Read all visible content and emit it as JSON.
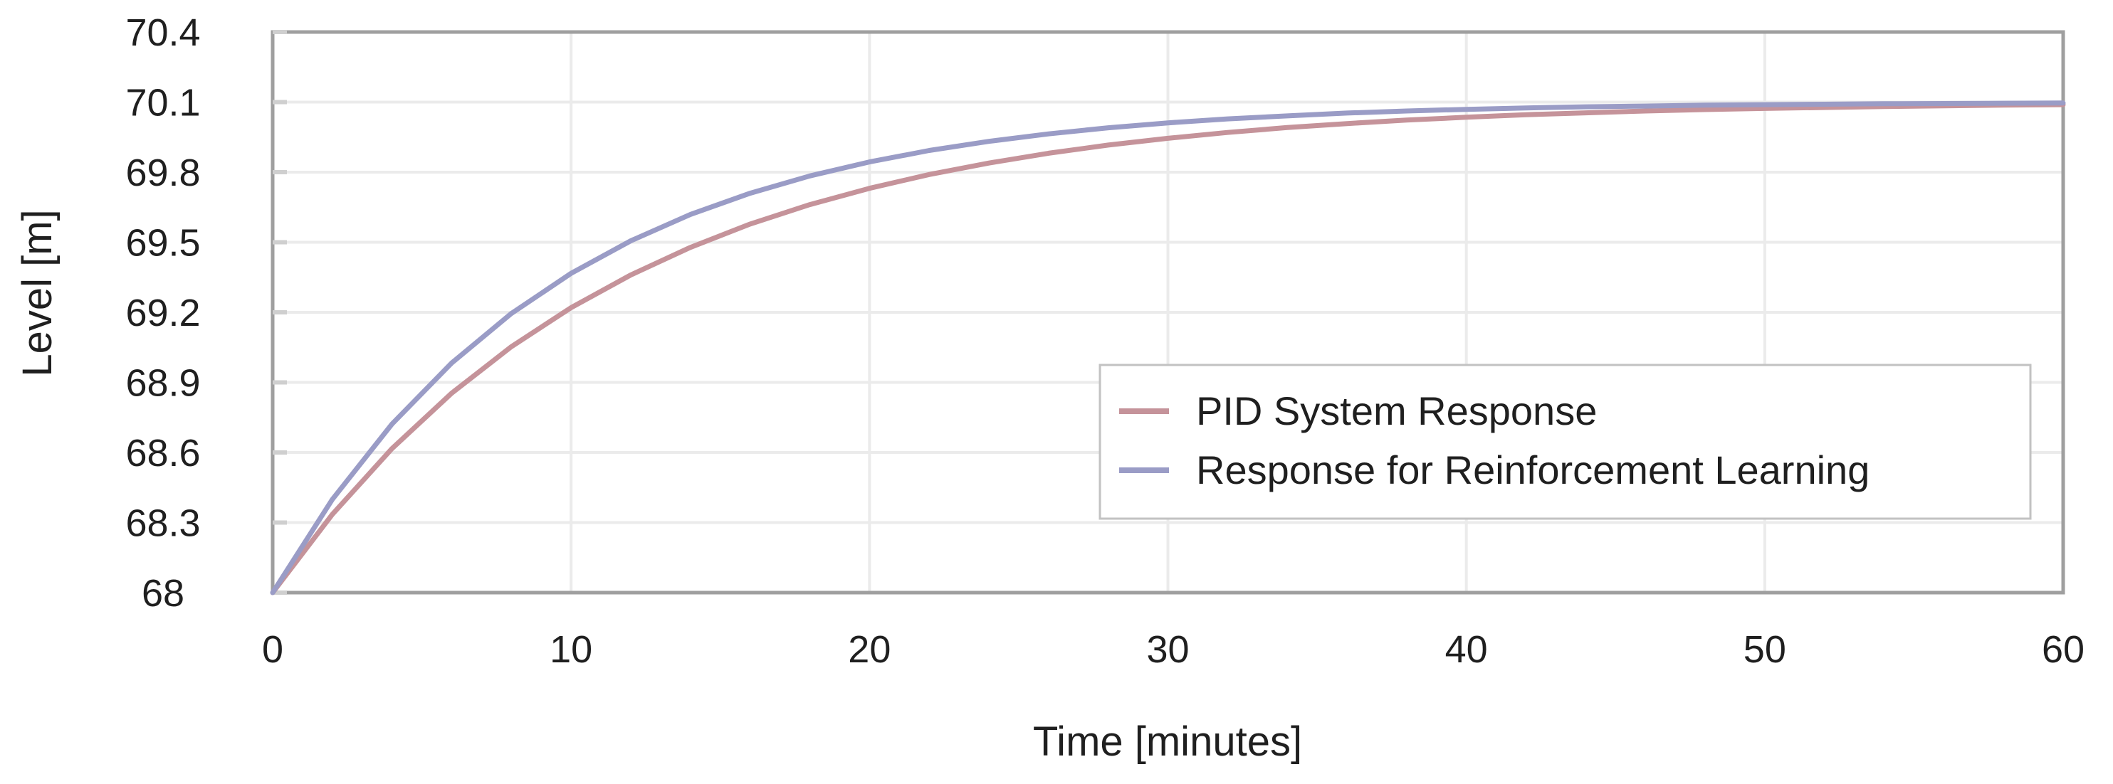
{
  "figure": {
    "background_color": "#ffffff",
    "text_color": "#1f1f1f",
    "gridline_color": "#ebebeb",
    "axis_border_color": "#9f9f9f",
    "tick_nub_color": "#cfcfcf",
    "legend_border_color": "#c2c2c2",
    "legend_fill_color": "#ffffff"
  },
  "chart_data": {
    "type": "line",
    "title": "",
    "xlabel": "Time [minutes]",
    "ylabel": "Level [m]",
    "xlim": [
      0,
      60
    ],
    "ylim": [
      68,
      70.4
    ],
    "x_ticks": [
      0,
      10,
      20,
      30,
      40,
      50,
      60
    ],
    "y_ticks": [
      68,
      68.3,
      68.6,
      68.9,
      69.2,
      69.5,
      69.8,
      70.1,
      70.4
    ],
    "grid": true,
    "legend_position": "inside-center-right",
    "x": [
      0,
      2,
      4,
      6,
      8,
      10,
      12,
      14,
      16,
      18,
      20,
      22,
      24,
      26,
      28,
      30,
      32,
      34,
      36,
      38,
      40,
      42,
      44,
      46,
      48,
      50,
      52,
      54,
      56,
      58,
      60
    ],
    "series": [
      {
        "name": "PID System Response",
        "color": "#c5939a",
        "values": [
          68.0,
          68.335,
          68.617,
          68.854,
          69.053,
          69.22,
          69.36,
          69.478,
          69.578,
          69.661,
          69.731,
          69.79,
          69.839,
          69.881,
          69.916,
          69.945,
          69.97,
          69.991,
          70.008,
          70.023,
          70.035,
          70.046,
          70.054,
          70.062,
          70.068,
          70.073,
          70.077,
          70.081,
          70.084,
          70.087,
          70.089
        ]
      },
      {
        "name": "Response for Reinforcement Learning",
        "color": "#9a9cc6",
        "values": [
          68.0,
          68.399,
          68.722,
          68.983,
          69.195,
          69.367,
          69.506,
          69.619,
          69.71,
          69.784,
          69.844,
          69.893,
          69.932,
          69.964,
          69.99,
          70.011,
          70.028,
          70.041,
          70.053,
          70.062,
          70.069,
          70.075,
          70.08,
          70.083,
          70.087,
          70.089,
          70.091,
          70.093,
          70.094,
          70.095,
          70.096
        ]
      }
    ]
  }
}
